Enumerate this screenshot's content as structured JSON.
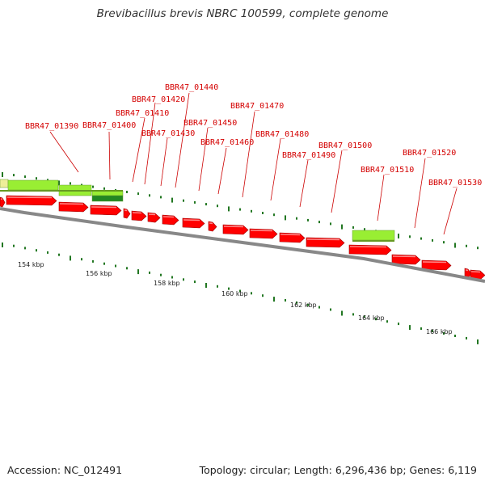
{
  "title": "Brevibacillus brevis NBRC 100599, complete genome",
  "footer": {
    "accession": "Accession: NC_012491",
    "summary": "Topology: circular; Length: 6,296,436 bp; Genes: 6,119"
  },
  "colors": {
    "gene_forward": "#ff0000",
    "label_text": "#d40000",
    "feature_light_green": "#99ee33",
    "feature_dark_green": "#228822",
    "feature_yellow": "#eeee99",
    "backbone": "#888888",
    "tick_green": "#227722"
  },
  "scale_labels": [
    "154 kbp",
    "156 kbp",
    "158 kbp",
    "160 kbp",
    "162 kbp",
    "164 kbp",
    "166 kbp"
  ],
  "gene_labels": [
    "BBR47_01390",
    "BBR47_01400",
    "BBR47_01410",
    "BBR47_01420",
    "BBR47_01430",
    "BBR47_01440",
    "BBR47_01450",
    "BBR47_01460",
    "BBR47_01470",
    "BBR47_01480",
    "BBR47_01490",
    "BBR47_01500",
    "BBR47_01510",
    "BBR47_01520",
    "BBR47_01530"
  ]
}
